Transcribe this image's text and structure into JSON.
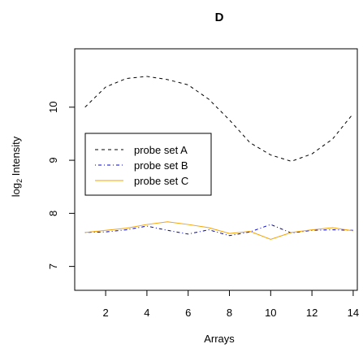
{
  "chart_data": {
    "type": "line",
    "title": "D",
    "xlabel": "Arrays",
    "ylabel_main": "log",
    "ylabel_sub": "2",
    "ylabel_rest": " Intensity",
    "xlim": [
      0.5,
      14.2
    ],
    "ylim": [
      6.55,
      11.1
    ],
    "x_ticks": [
      2,
      4,
      6,
      8,
      10,
      12,
      14
    ],
    "y_ticks": [
      7,
      8,
      9,
      10
    ],
    "legend_position": "left-middle",
    "grid": false,
    "x": [
      1,
      2,
      3,
      4,
      5,
      6,
      7,
      8,
      9,
      10,
      11,
      12,
      13,
      14
    ],
    "series": [
      {
        "name": "probe set A",
        "color": "#000000",
        "dash": "dashed",
        "values": [
          10.0,
          10.38,
          10.54,
          10.58,
          10.52,
          10.42,
          10.15,
          9.76,
          9.33,
          9.1,
          8.98,
          9.12,
          9.4,
          9.88
        ]
      },
      {
        "name": "probe set B",
        "color": "#0000cc",
        "dash": "dotdash",
        "values": [
          7.64,
          7.65,
          7.69,
          7.76,
          7.68,
          7.61,
          7.69,
          7.58,
          7.65,
          7.79,
          7.63,
          7.68,
          7.69,
          7.68
        ]
      },
      {
        "name": "probe set C",
        "color": "#f5a300",
        "dash": "solid",
        "values": [
          7.64,
          7.68,
          7.72,
          7.79,
          7.84,
          7.79,
          7.73,
          7.62,
          7.66,
          7.51,
          7.64,
          7.69,
          7.73,
          7.67
        ]
      }
    ]
  }
}
